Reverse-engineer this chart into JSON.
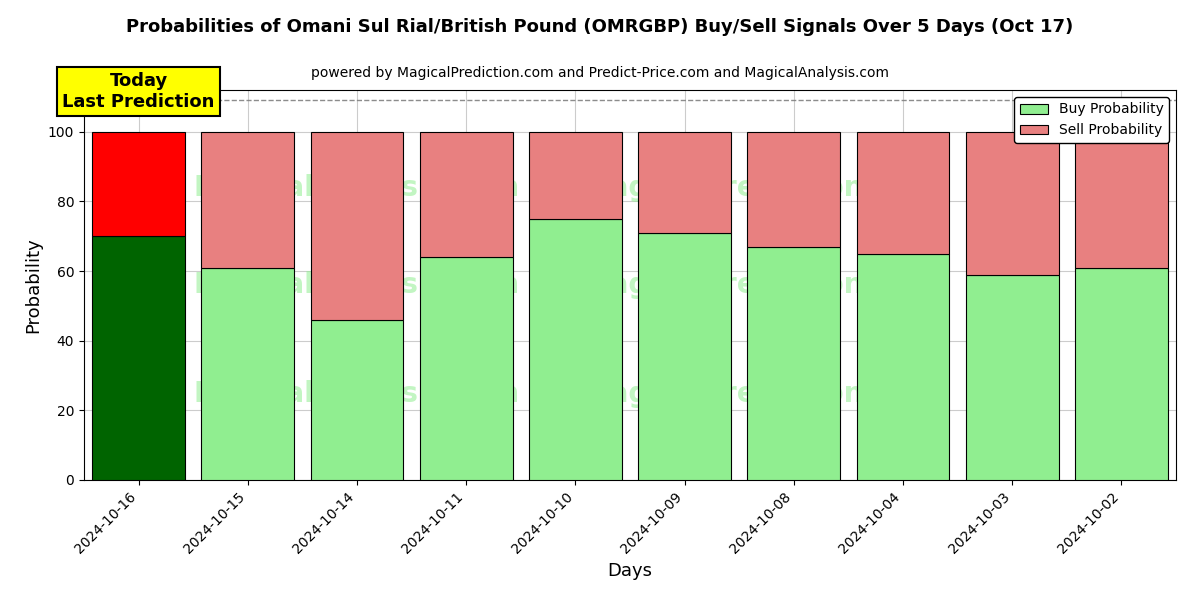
{
  "title": "Probabilities of Omani Sul Rial/British Pound (OMRGBP) Buy/Sell Signals Over 5 Days (Oct 17)",
  "subtitle": "powered by MagicalPrediction.com and Predict-Price.com and MagicalAnalysis.com",
  "xlabel": "Days",
  "ylabel": "Probability",
  "categories": [
    "2024-10-16",
    "2024-10-15",
    "2024-10-14",
    "2024-10-11",
    "2024-10-10",
    "2024-10-09",
    "2024-10-08",
    "2024-10-04",
    "2024-10-03",
    "2024-10-02"
  ],
  "buy_values": [
    70,
    61,
    46,
    64,
    75,
    71,
    67,
    65,
    59,
    61
  ],
  "sell_values": [
    30,
    39,
    54,
    36,
    25,
    29,
    33,
    35,
    41,
    39
  ],
  "today_buy_color": "#006400",
  "today_sell_color": "#ff0000",
  "buy_color": "#90EE90",
  "sell_color": "#E88080",
  "today_annotation_bg": "#FFFF00",
  "today_annotation_text": "Today\nLast Prediction",
  "ylim": [
    0,
    112
  ],
  "yticks": [
    0,
    20,
    40,
    60,
    80,
    100
  ],
  "dashed_line_y": 109,
  "legend_buy_label": "Buy Probability",
  "legend_sell_label": "Sell Probability",
  "bg_color": "#ffffff",
  "grid_color": "#cccccc",
  "bar_width": 0.85
}
